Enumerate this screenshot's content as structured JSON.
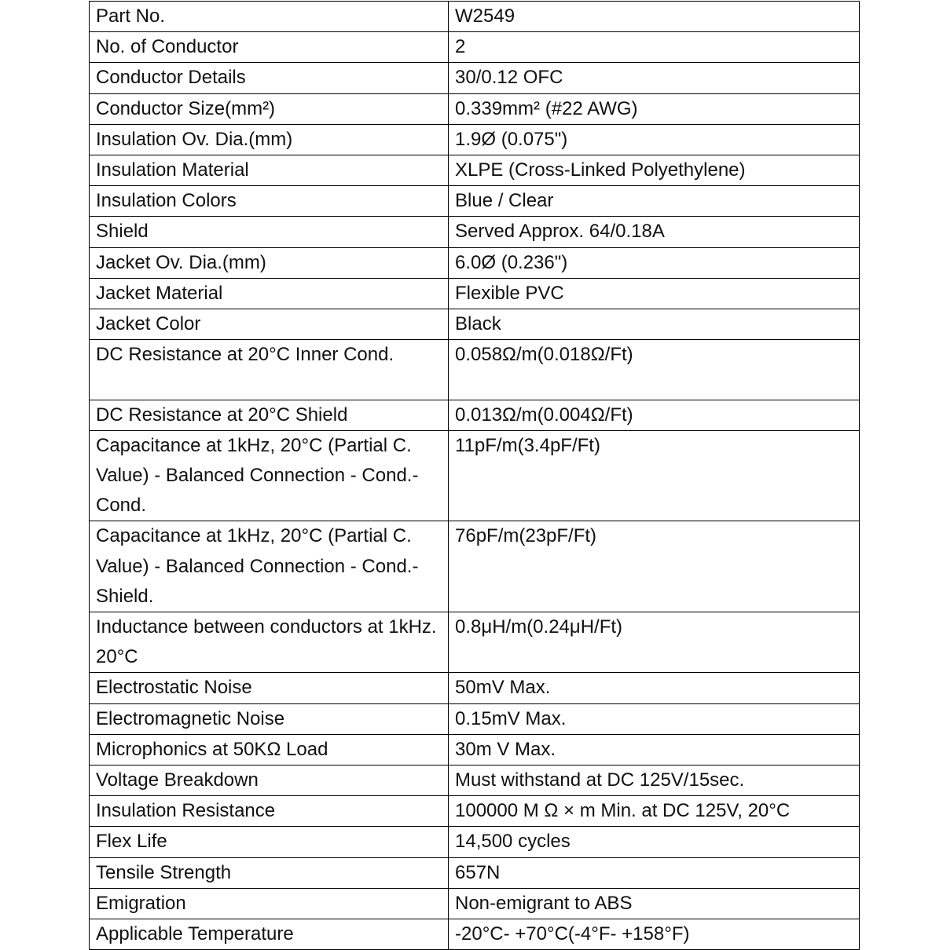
{
  "table": {
    "rows": [
      [
        "Part No.",
        "W2549"
      ],
      [
        "No. of Conductor",
        "2"
      ],
      [
        "Conductor Details",
        "30/0.12 OFC"
      ],
      [
        "Conductor Size(mm²)",
        "0.339mm² (#22 AWG)"
      ],
      [
        "Insulation Ov. Dia.(mm)",
        "1.9Ø (0.075\")"
      ],
      [
        "Insulation Material",
        "XLPE (Cross-Linked Polyethylene)"
      ],
      [
        "Insulation Colors",
        "Blue / Clear"
      ],
      [
        "Shield",
        "Served Approx. 64/0.18A"
      ],
      [
        "Jacket Ov. Dia.(mm)",
        "6.0Ø (0.236\")"
      ],
      [
        "Jacket Material",
        "Flexible PVC"
      ],
      [
        "Jacket Color",
        "Black"
      ],
      [
        "DC Resistance at 20°C Inner Cond.",
        "0.058Ω/m(0.018Ω/Ft)"
      ],
      [
        "DC Resistance at 20°C Shield",
        "0.013Ω/m(0.004Ω/Ft)"
      ],
      [
        "Capacitance at 1kHz, 20°C (Partial C. Value) - Balanced Connection - Cond.-Cond.",
        "11pF/m(3.4pF/Ft)"
      ],
      [
        "Capacitance at 1kHz, 20°C (Partial C. Value) - Balanced Connection - Cond.- Shield.",
        "76pF/m(23pF/Ft)"
      ],
      [
        "Inductance between conductors at 1kHz. 20°C",
        "0.8μH/m(0.24μH/Ft)"
      ],
      [
        "Electrostatic Noise",
        "50mV Max."
      ],
      [
        "Electromagnetic Noise",
        "0.15mV Max."
      ],
      [
        "Microphonics at 50KΩ Load",
        "30m V Max."
      ],
      [
        "Voltage Breakdown",
        "Must withstand at DC 125V/15sec."
      ],
      [
        "Insulation Resistance",
        "100000 M Ω × m Min. at DC 125V, 20°C"
      ],
      [
        "Flex Life",
        "14,500 cycles"
      ],
      [
        "Tensile Strength",
        "657N"
      ],
      [
        "Emigration",
        "Non-emigrant to ABS"
      ],
      [
        "Applicable Temperature",
        "-20°C- +70°C(-4°F- +158°F)"
      ]
    ]
  }
}
